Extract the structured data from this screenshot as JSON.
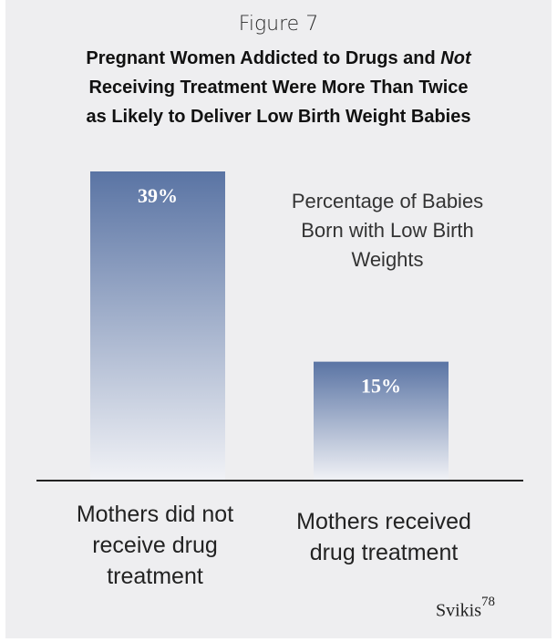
{
  "figure_label": "Figure 7",
  "title_lines": [
    [
      "Pregnant Women Addicted to Drugs and ",
      "Not"
    ],
    [
      "Receiving Treatment Were More Than Twice"
    ],
    [
      "as Likely to Deliver Low Birth Weight Babies"
    ]
  ],
  "legend_note_lines": [
    "Percentage of Babies",
    "Born with Low Birth",
    "Weights"
  ],
  "source": {
    "author": "Svikis",
    "ref": "78"
  },
  "colors": {
    "bar_top": "#5a74a4",
    "bar_bottom": "#f1f2f6",
    "background": "#eeeef0",
    "baseline": "#222222",
    "bar_label": "#ffffff"
  },
  "chart_data": {
    "type": "bar",
    "categories": [
      "Mothers did not receive drug treatment",
      "Mothers received drug treatment"
    ],
    "category_lines": [
      [
        "Mothers did not",
        "receive drug",
        "treatment"
      ],
      [
        "Mothers received",
        "drug treatment"
      ]
    ],
    "values": [
      39,
      15
    ],
    "value_labels": [
      "39%",
      "15%"
    ],
    "ylim": [
      0,
      39
    ]
  }
}
